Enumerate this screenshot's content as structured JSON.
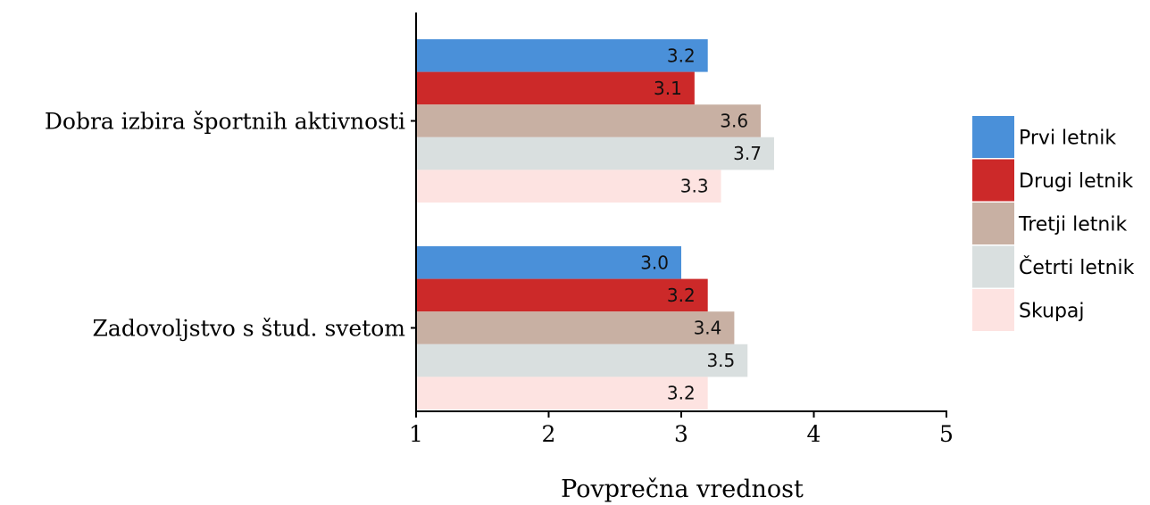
{
  "chart_data": {
    "type": "bar",
    "orientation": "horizontal",
    "title": "",
    "xlabel": "Povprečna vrednost",
    "ylabel": "",
    "xlim": [
      1,
      5
    ],
    "xticks": [
      1,
      2,
      3,
      4,
      5
    ],
    "grid": false,
    "legend_position": "right",
    "categories": [
      "Dobra izbira športnih aktivnosti",
      "Zadovoljstvo s štud. svetom"
    ],
    "series": [
      {
        "name": "Prvi letnik",
        "color": "#4a90d9",
        "values": [
          3.2,
          3.0
        ],
        "labels": [
          "3.2",
          "3.0"
        ]
      },
      {
        "name": "Drugi letnik",
        "color": "#cc2929",
        "values": [
          3.1,
          3.2
        ],
        "labels": [
          "3.1",
          "3.2"
        ]
      },
      {
        "name": "Tretji letnik",
        "color": "#c8b0a3",
        "values": [
          3.6,
          3.4
        ],
        "labels": [
          "3.6",
          "3.4"
        ]
      },
      {
        "name": "Četrti letnik",
        "color": "#d9dfdf",
        "values": [
          3.7,
          3.5
        ],
        "labels": [
          "3.7",
          "3.5"
        ]
      },
      {
        "name": "Skupaj",
        "color": "#fde3e1",
        "values": [
          3.3,
          3.2
        ],
        "labels": [
          "3.3",
          "3.2"
        ]
      }
    ]
  }
}
